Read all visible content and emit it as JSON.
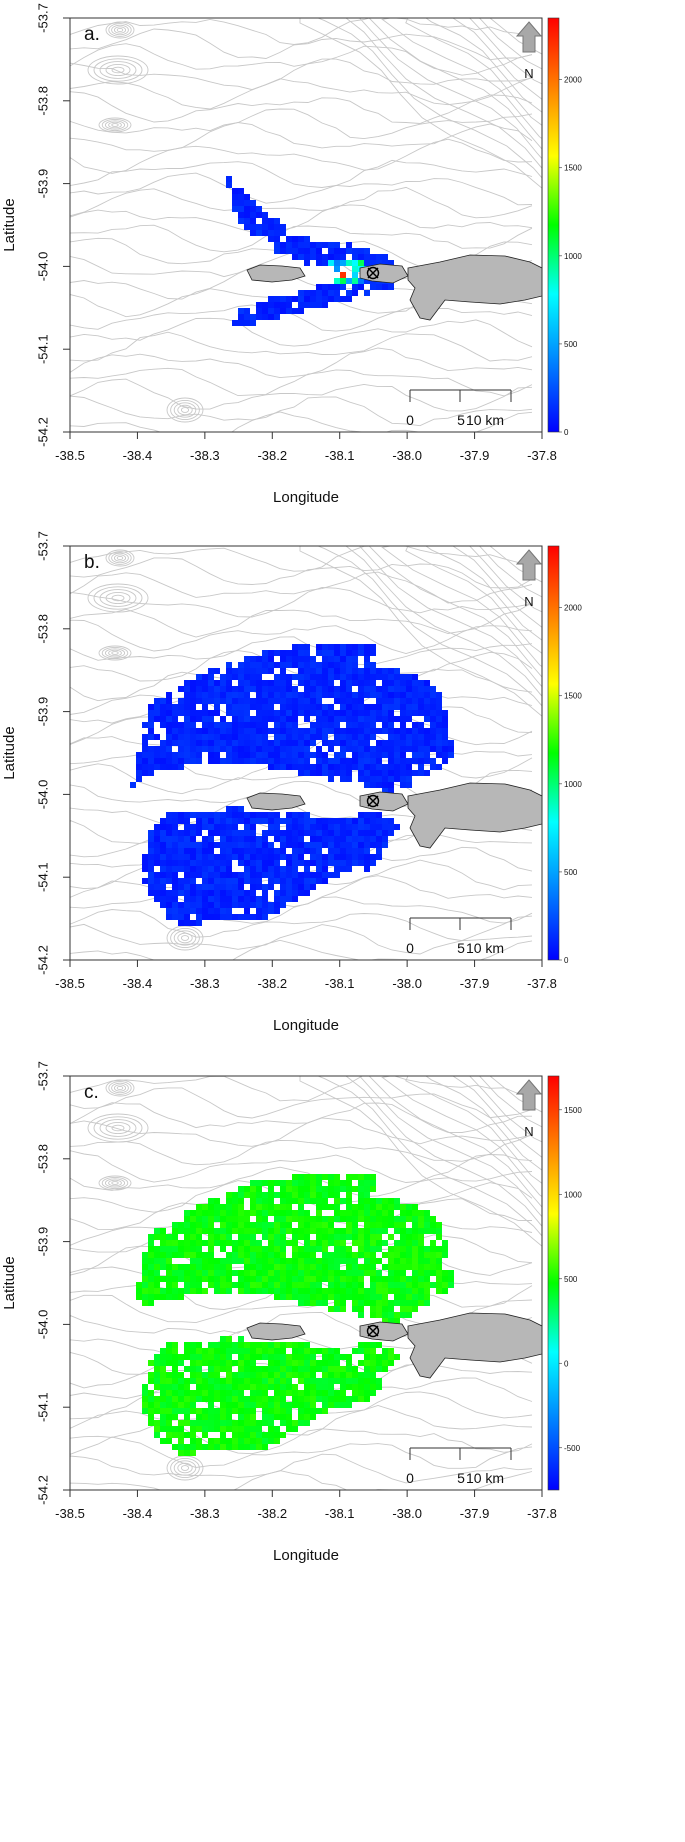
{
  "axes": {
    "xlabel": "Longitude",
    "ylabel": "Latitude",
    "xlim": [
      -38.5,
      -37.8
    ],
    "ylim": [
      -54.2,
      -53.7
    ],
    "xticks": [
      "-38.5",
      "-38.4",
      "-38.3",
      "-38.2",
      "-38.1",
      "-38.0",
      "-37.9",
      "-37.8"
    ],
    "yticks": [
      "-53.7",
      "-53.8",
      "-53.9",
      "-54.0",
      "-54.1",
      "-54.2"
    ]
  },
  "scalebar": {
    "labels": [
      "0",
      "5",
      "10 km"
    ]
  },
  "north_label": "N",
  "colors": {
    "contour": "#c8c8c8",
    "land": "#b7b7b7",
    "colormap": [
      "#0000ff",
      "#0080ff",
      "#00ffff",
      "#00ff00",
      "#ffff00",
      "#ff8000",
      "#ff0000"
    ]
  },
  "panels": [
    {
      "label": "a.",
      "colorbar": {
        "min": 0,
        "max": 2350,
        "ticks": [
          "0",
          "500",
          "1000",
          "1500",
          "2000"
        ],
        "tick_values": [
          0,
          500,
          1000,
          1500,
          2000
        ]
      }
    },
    {
      "label": "b.",
      "colorbar": {
        "min": 0,
        "max": 2350,
        "ticks": [
          "0",
          "500",
          "1000",
          "1500",
          "2000"
        ],
        "tick_values": [
          0,
          500,
          1000,
          1500,
          2000
        ]
      }
    },
    {
      "label": "c.",
      "colorbar": {
        "min": -750,
        "max": 1700,
        "ticks": [
          "-500",
          "0",
          "500",
          "1000",
          "1500"
        ],
        "tick_values": [
          -500,
          0,
          500,
          1000,
          1500
        ]
      }
    }
  ]
}
